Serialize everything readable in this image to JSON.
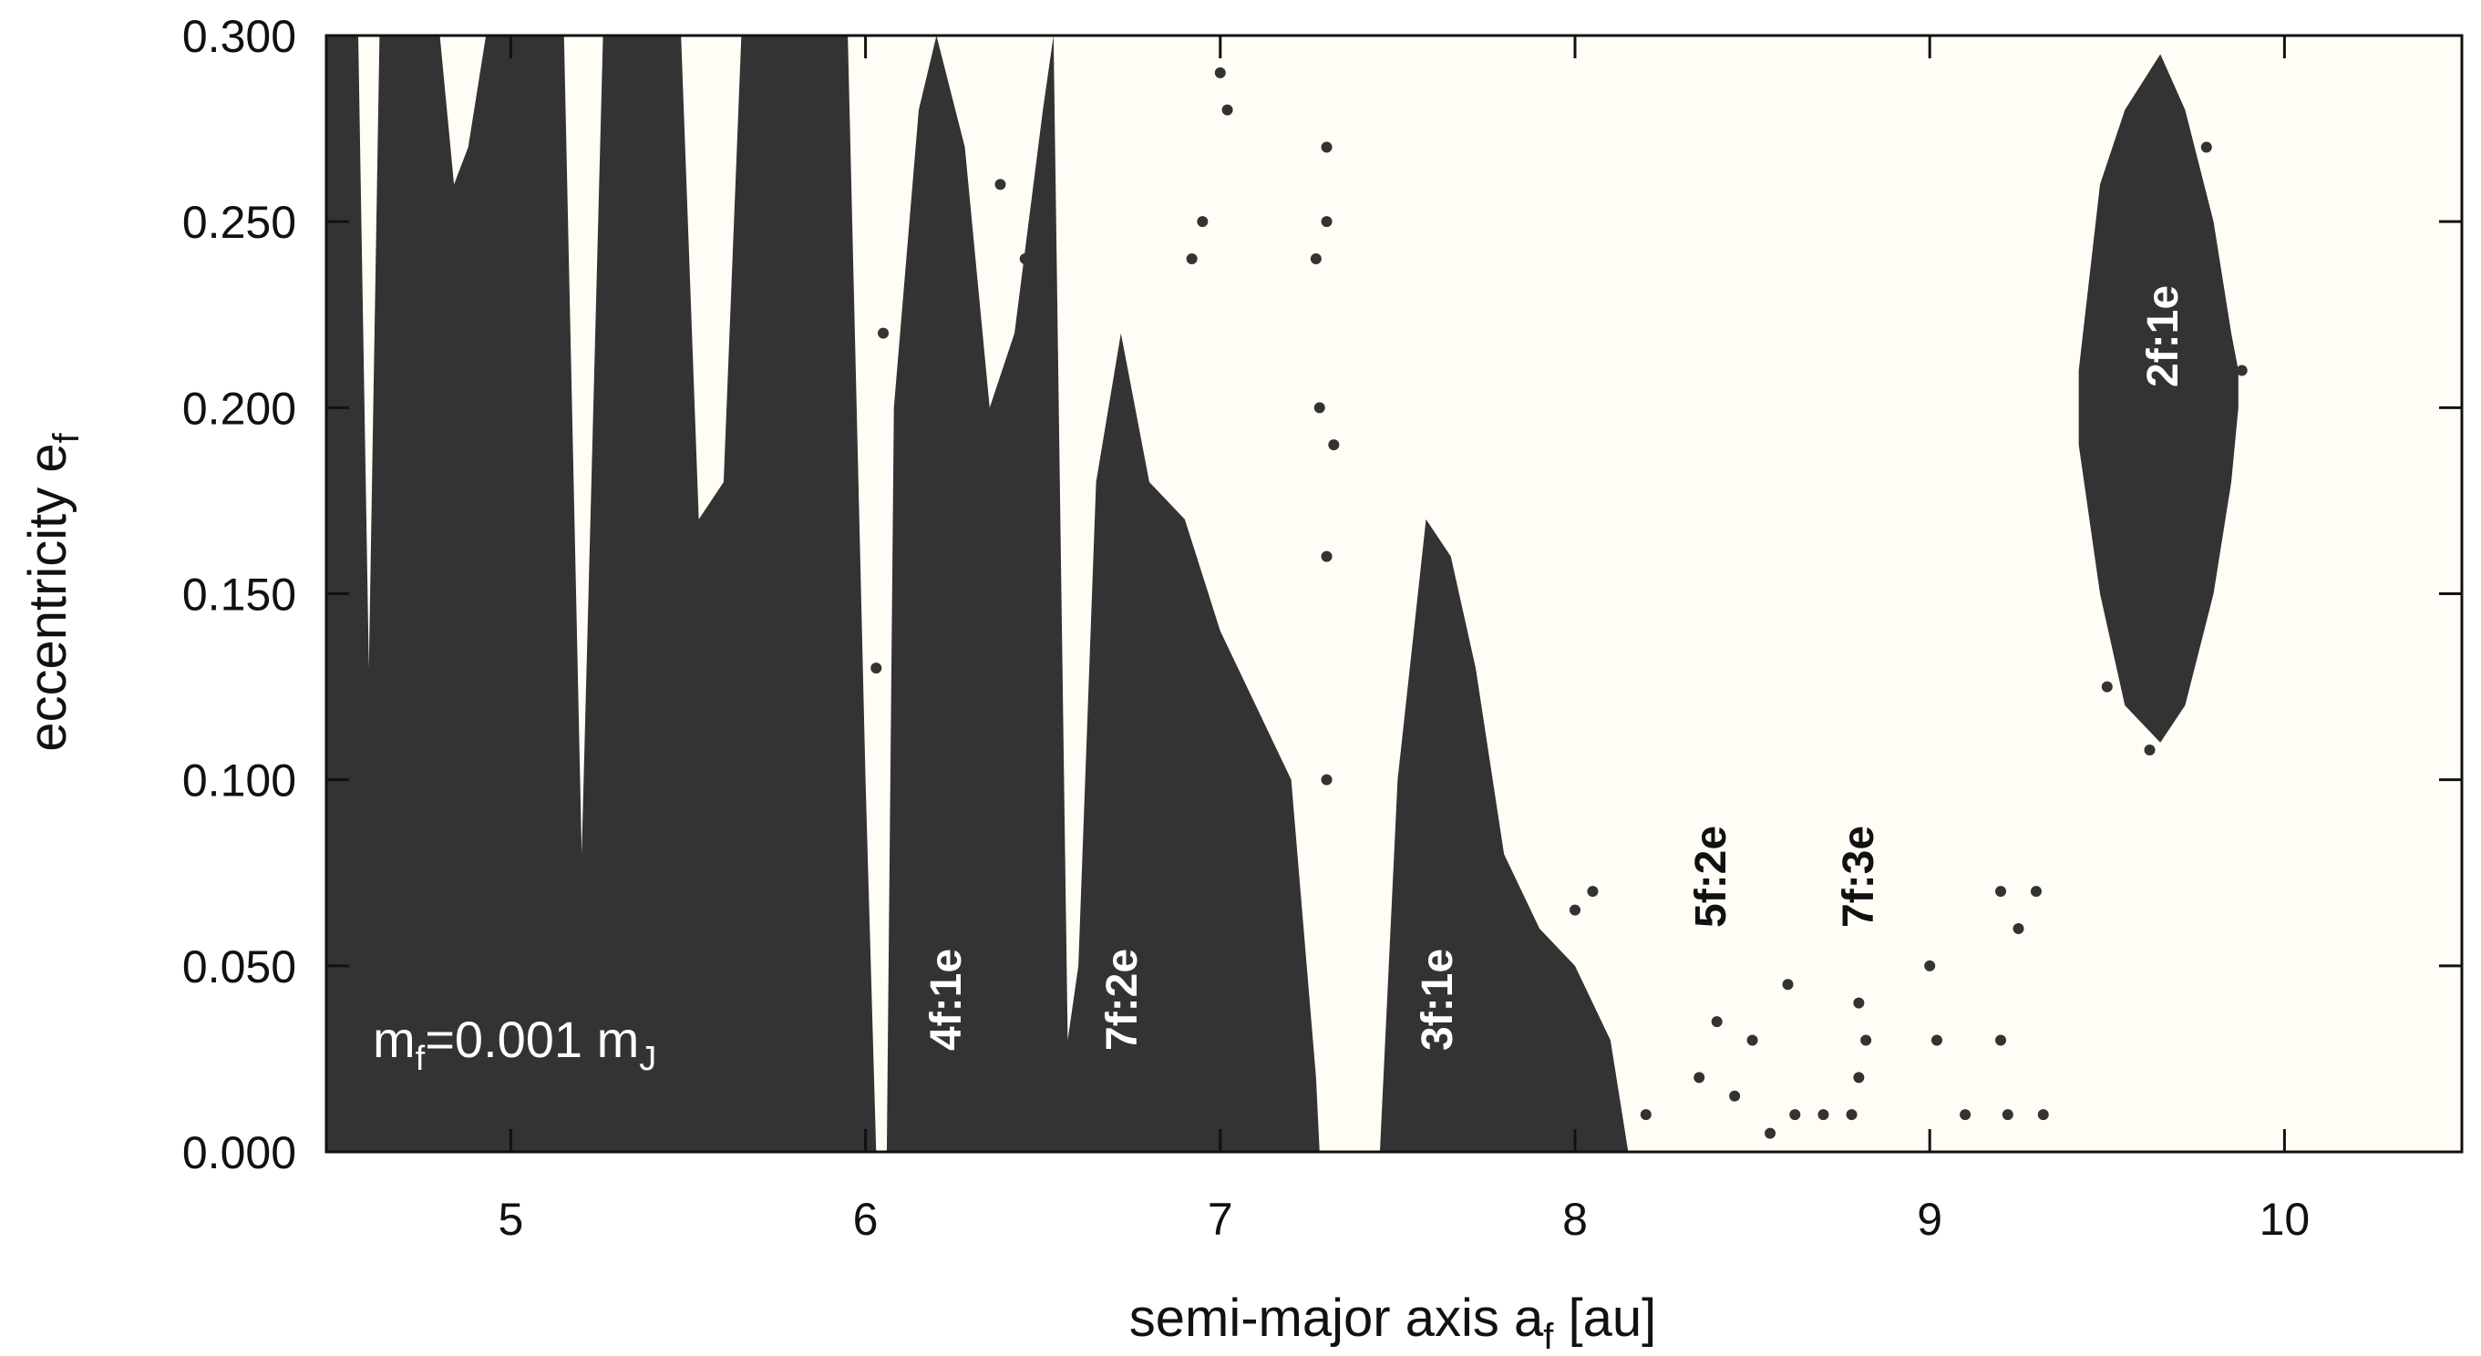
{
  "chart_data": {
    "type": "scatter",
    "xlabel": [
      "semi-major axis a",
      "f",
      " [au]"
    ],
    "ylabel": [
      "eccentricity e",
      "f"
    ],
    "xlim": [
      4.48,
      10.5
    ],
    "ylim": [
      0,
      0.3
    ],
    "xticks": [
      5,
      6,
      7,
      8,
      9,
      10
    ],
    "yticks": [
      {
        "value": 0,
        "label": "0.000"
      },
      {
        "value": 0.05,
        "label": "0.050"
      },
      {
        "value": 0.1,
        "label": "0.100"
      },
      {
        "value": 0.15,
        "label": "0.150"
      },
      {
        "value": 0.2,
        "label": "0.200"
      },
      {
        "value": 0.25,
        "label": "0.250"
      },
      {
        "value": 0.3,
        "label": "0.300"
      }
    ],
    "color": "#333333",
    "annotation": [
      "m",
      "f",
      "=0.001 m",
      "J"
    ],
    "resonances": [
      "4f:1e",
      "7f:2e",
      "3f:1e",
      "5f:2e",
      "7f:3e",
      "2f:1e"
    ],
    "areas": [
      {
        "x": [
          4.48,
          4.57,
          4.6,
          4.63,
          4.8,
          4.84,
          4.88,
          4.93,
          5.15,
          5.2,
          5.26,
          5.48,
          5.53,
          5.6,
          5.65,
          5.95,
          6.0,
          6.03,
          6.05,
          6.06,
          6.08,
          6.15,
          6.2,
          6.28,
          6.35,
          6.42,
          6.5,
          6.53,
          6.57,
          6.6,
          6.65,
          6.72,
          6.8,
          6.9,
          7.0,
          7.1,
          7.2,
          7.27,
          7.28
        ],
        "upper": [
          0.3,
          0.3,
          0.13,
          0.3,
          0.3,
          0.26,
          0.27,
          0.3,
          0.3,
          0.08,
          0.3,
          0.3,
          0.17,
          0.18,
          0.3,
          0.3,
          0.1,
          0,
          null,
          0,
          0.2,
          0.28,
          0.3,
          0.27,
          0.2,
          0.22,
          0.28,
          0.3,
          0.03,
          0.05,
          0.18,
          0.22,
          0.18,
          0.17,
          0.14,
          0.12,
          0.1,
          0.02,
          0
        ],
        "lower": [
          0,
          0,
          0,
          0,
          0,
          0,
          0,
          0,
          0,
          0,
          0,
          0,
          0,
          0,
          0,
          0,
          0,
          0,
          null,
          0,
          0,
          0,
          0,
          0,
          0,
          0,
          0,
          0,
          0,
          0,
          0,
          0,
          0,
          0,
          0,
          0,
          0,
          0,
          0
        ]
      },
      {
        "x": [
          7.45,
          7.5,
          7.58,
          7.65,
          7.72,
          7.8,
          7.9,
          8.0,
          8.1,
          8.15
        ],
        "upper": [
          0,
          0.1,
          0.17,
          0.16,
          0.13,
          0.08,
          0.06,
          0.05,
          0.03,
          0
        ],
        "lower": [
          0,
          0,
          0,
          0,
          0,
          0,
          0,
          0,
          0,
          0
        ]
      },
      {
        "x": [
          9.42,
          9.48,
          9.55,
          9.65,
          9.72,
          9.8,
          9.85,
          9.87
        ],
        "upper": [
          0.21,
          0.26,
          0.28,
          0.295,
          0.28,
          0.25,
          0.22,
          0.21
        ],
        "lower": [
          0.19,
          0.15,
          0.12,
          0.11,
          0.12,
          0.15,
          0.18,
          0.2
        ]
      }
    ],
    "x": [
      7.0,
      7.02,
      6.95,
      6.92,
      7.3,
      7.3,
      7.27,
      7.28,
      7.32,
      7.3,
      7.3,
      6.05,
      6.03,
      6.38,
      6.45,
      8.4,
      8.35,
      8.45,
      8.5,
      8.6,
      8.62,
      8.8,
      8.8,
      8.78,
      8.82,
      9.0,
      9.02,
      9.1,
      9.2,
      9.25,
      9.2,
      9.22,
      9.3,
      9.32,
      8.7,
      8.55,
      8.2,
      8.05,
      8.0,
      9.5,
      9.78,
      9.88,
      9.62
    ],
    "values": [
      0.29,
      0.28,
      0.25,
      0.24,
      0.27,
      0.25,
      0.24,
      0.2,
      0.19,
      0.16,
      0.1,
      0.22,
      0.13,
      0.26,
      0.24,
      0.035,
      0.02,
      0.015,
      0.03,
      0.045,
      0.01,
      0.04,
      0.02,
      0.01,
      0.03,
      0.05,
      0.03,
      0.01,
      0.07,
      0.06,
      0.03,
      0.01,
      0.07,
      0.01,
      0.01,
      0.005,
      0.01,
      0.07,
      0.065,
      0.125,
      0.27,
      0.21,
      0.108
    ]
  }
}
